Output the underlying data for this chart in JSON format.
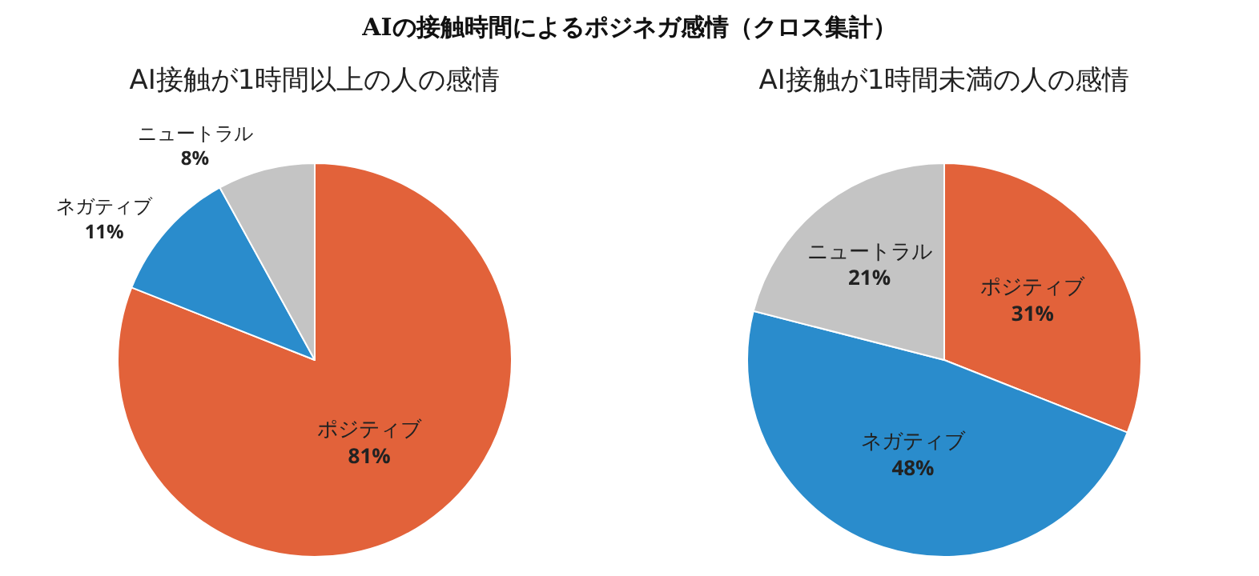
{
  "chart_data": [
    {
      "type": "pie",
      "title": "AIの接触時間によるポジネガ感情（クロス集計）",
      "subtitle": "AI接触が1時間以上の人の感情",
      "categories": [
        "ポジティブ",
        "ネガティブ",
        "ニュートラル"
      ],
      "values": [
        81,
        11,
        8
      ],
      "value_labels": [
        "81%",
        "11%",
        "8%"
      ],
      "colors": [
        "#e2623a",
        "#2a8ccc",
        "#c4c4c4"
      ],
      "legend": false
    },
    {
      "type": "pie",
      "subtitle": "AI接触が1時間未満の人の感情",
      "categories": [
        "ポジティブ",
        "ネガティブ",
        "ニュートラル"
      ],
      "values": [
        31,
        48,
        21
      ],
      "value_labels": [
        "31%",
        "48%",
        "21%"
      ],
      "colors": [
        "#e2623a",
        "#2a8ccc",
        "#c4c4c4"
      ],
      "legend": false
    }
  ]
}
